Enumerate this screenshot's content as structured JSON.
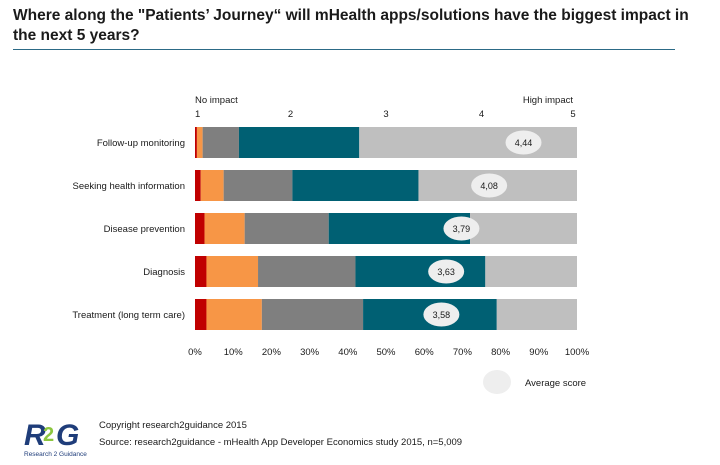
{
  "title": "Where along the  \"Patients’ Journey“ will mHealth apps/solutions have the biggest impact in the next 5 years?",
  "footer": {
    "copyright": "Copyright research2guidance 2015",
    "source": "Source: research2guidance - mHealth App Developer Economics study 2015, n=5,009"
  },
  "logo": {
    "mark_left": "R",
    "mark_mid": "2",
    "mark_right": "G",
    "tagline": "Research 2 Guidance"
  },
  "colors": {
    "c1": "#c00000",
    "c2": "#f79646",
    "c3": "#7f7f7f",
    "c4": "#006073",
    "c5": "#bfbfbf",
    "bubble": "#eeeeee",
    "logo_blue": "#1f3d7a",
    "logo_green": "#8cc63f"
  },
  "chart_data": {
    "type": "bar",
    "orientation": "horizontal",
    "stacked": "100%",
    "categories": [
      "Follow-up monitoring",
      "Seeking health information",
      "Disease prevention",
      "Diagnosis",
      "Treatment (long term care)"
    ],
    "series": [
      {
        "key": "s1",
        "color": "#c00000",
        "values": [
          0.5,
          1.5,
          2.5,
          3,
          3
        ]
      },
      {
        "key": "s2",
        "color": "#f79646",
        "values": [
          1.5,
          6,
          10.5,
          13.5,
          14.5
        ]
      },
      {
        "key": "s3",
        "color": "#7f7f7f",
        "values": [
          9.5,
          18,
          22,
          25.5,
          26.5
        ]
      },
      {
        "key": "s4",
        "color": "#006073",
        "values": [
          31.5,
          33,
          37,
          34,
          35
        ]
      },
      {
        "key": "s5",
        "color": "#bfbfbf",
        "values": [
          57,
          41.5,
          28,
          24,
          21
        ]
      }
    ],
    "average_scores": [
      "4,44",
      "4,08",
      "3,79",
      "3,63",
      "3,58"
    ],
    "average_values": [
      4.44,
      4.08,
      3.79,
      3.63,
      3.58
    ],
    "average_legend": "Average score",
    "x_ticks": [
      "0%",
      "10%",
      "20%",
      "30%",
      "40%",
      "50%",
      "60%",
      "70%",
      "80%",
      "90%",
      "100%"
    ],
    "xlim": [
      0,
      100
    ],
    "scale_labels": {
      "low": "No impact",
      "high": "High impact"
    },
    "scale_ticks": [
      "1",
      "2",
      "3",
      "4",
      "5"
    ],
    "scale_range": [
      1,
      5
    ]
  }
}
